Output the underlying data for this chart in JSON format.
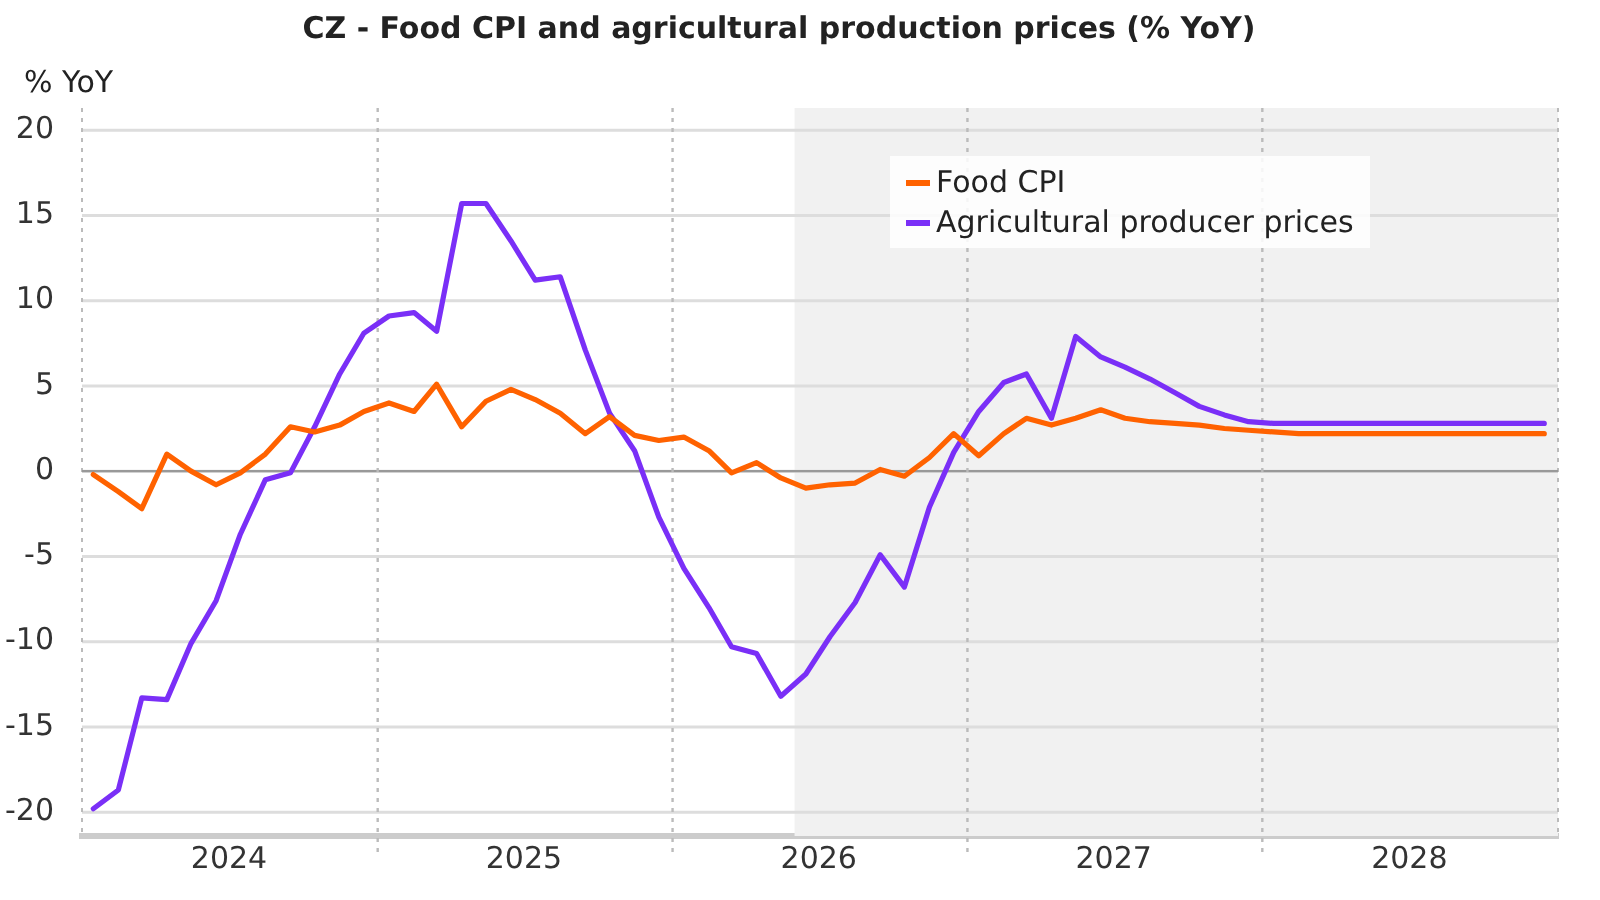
{
  "chart_data": {
    "type": "line",
    "title": "CZ - Food CPI and agricultural production prices (% YoY)",
    "ylabel": "% YoY",
    "x": [
      "2024-01-15",
      "2024-02-15",
      "2024-03-15",
      "2024-04-15",
      "2024-05-15",
      "2024-06-15",
      "2024-07-15",
      "2024-08-15",
      "2024-09-15",
      "2024-10-15",
      "2024-11-15",
      "2024-12-15",
      "2025-01-15",
      "2025-02-15",
      "2025-03-15",
      "2025-04-15",
      "2025-05-15",
      "2025-06-15",
      "2025-07-15",
      "2025-08-15",
      "2025-09-15",
      "2025-10-15",
      "2025-11-15",
      "2025-12-15",
      "2026-01-15",
      "2026-02-15",
      "2026-03-15",
      "2026-04-15",
      "2026-05-15",
      "2026-06-15",
      "2026-07-15",
      "2026-08-15",
      "2026-09-15",
      "2026-10-15",
      "2026-11-15",
      "2026-12-15",
      "2027-01-15",
      "2027-02-15",
      "2027-03-15",
      "2027-04-15",
      "2027-05-15",
      "2027-06-15",
      "2027-07-15",
      "2027-08-15",
      "2027-09-15",
      "2027-10-15",
      "2027-11-15",
      "2027-12-15",
      "2028-01-15",
      "2028-02-15",
      "2028-03-15",
      "2028-04-15",
      "2028-05-15",
      "2028-06-15",
      "2028-07-15",
      "2028-08-15",
      "2028-09-15",
      "2028-10-15",
      "2028-11-15",
      "2028-12-15"
    ],
    "series": [
      {
        "name": "Food CPI",
        "color": "#ff6200",
        "values": [
          -0.2,
          -1.2,
          -2.2,
          1.0,
          0,
          -0.8,
          -0.1,
          1.0,
          2.6,
          2.3,
          2.7,
          3.5,
          4.0,
          3.5,
          5.1,
          2.6,
          4.1,
          4.8,
          4.2,
          3.4,
          2.2,
          3.2,
          2.1,
          1.8,
          2.0,
          1.2,
          -0.1,
          0.5,
          -0.4,
          -1.0,
          -0.8,
          -0.7,
          0.1,
          -0.3,
          0.8,
          2.2,
          0.9,
          2.2,
          3.1,
          2.7,
          3.1,
          3.6,
          3.1,
          2.9,
          2.8,
          2.7,
          2.5,
          2.4,
          2.3,
          2.2,
          2.2,
          2.2,
          2.2,
          2.2,
          2.2,
          2.2,
          2.2,
          2.2,
          2.2,
          2.2
        ]
      },
      {
        "name": "Agricultural producer prices",
        "color": "#7a2ff7",
        "values": [
          -19.8,
          -18.7,
          -13.3,
          -13.4,
          -10.1,
          -7.6,
          -3.7,
          -0.5,
          -0.1,
          2.6,
          5.7,
          8.1,
          9.1,
          9.3,
          8.2,
          15.7,
          15.7,
          13.5,
          11.2,
          11.4,
          7.1,
          3.4,
          1.2,
          -2.7,
          -5.7,
          -8.0,
          -10.3,
          -10.7,
          -13.2,
          -11.9,
          -9.7,
          -7.7,
          -4.9,
          -6.8,
          -2.1,
          1.1,
          3.5,
          5.2,
          5.7,
          3.1,
          7.9,
          6.7,
          6.1,
          5.4,
          4.6,
          3.8,
          3.3,
          2.9,
          2.8,
          2.8,
          2.8,
          2.8,
          2.8,
          2.8,
          2.8,
          2.8,
          2.8,
          2.8,
          2.8,
          2.8
        ]
      }
    ],
    "xlim": [
      "2024-01-01",
      "2029-01-01"
    ],
    "xticks": [
      {
        "value": "2024-07-01",
        "label": "2024"
      },
      {
        "value": "2025-07-01",
        "label": "2025"
      },
      {
        "value": "2026-07-01",
        "label": "2026"
      },
      {
        "value": "2027-07-01",
        "label": "2027"
      },
      {
        "value": "2028-07-01",
        "label": "2028"
      }
    ],
    "ylim": [
      -21.4,
      21.3
    ],
    "yticks": [
      -20,
      -15,
      -10,
      -5,
      0,
      5,
      10,
      15,
      20
    ],
    "grid": "y",
    "legend": "top right",
    "marker": "none",
    "line_style": "solid",
    "ref_lines": [
      {
        "axis": "y",
        "value": 0,
        "color": "#999999",
        "line_style": "solid"
      },
      {
        "axis": "x",
        "value": "2025-01-01",
        "color": "#bbbbbb",
        "line_style": "dotted"
      },
      {
        "axis": "x",
        "value": "2026-01-01",
        "color": "#bbbbbb",
        "line_style": "dotted"
      },
      {
        "axis": "x",
        "value": "2027-01-01",
        "color": "#bbbbbb",
        "line_style": "dotted"
      },
      {
        "axis": "x",
        "value": "2028-01-01",
        "color": "#bbbbbb",
        "line_style": "dotted"
      }
    ],
    "bands": [
      {
        "axis": "x",
        "from": "2026-06-01",
        "to": "2029-01-01",
        "color": "#f1f1f1"
      }
    ]
  }
}
